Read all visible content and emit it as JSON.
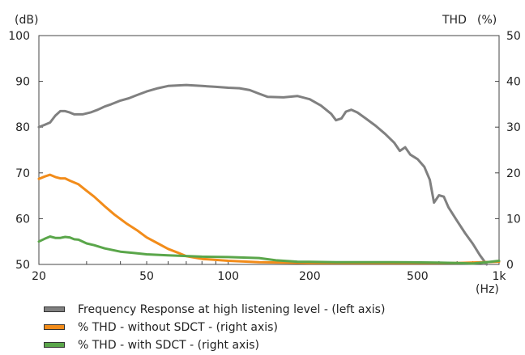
{
  "chart_data": {
    "type": "line",
    "xscale": "log",
    "xlim": [
      20,
      1000
    ],
    "xticks": [
      {
        "value": 20,
        "label": "20"
      },
      {
        "value": 50,
        "label": "50"
      },
      {
        "value": 100,
        "label": "100"
      },
      {
        "value": 200,
        "label": "200"
      },
      {
        "value": 500,
        "label": "500"
      },
      {
        "value": 1000,
        "label": "1k"
      }
    ],
    "xunit": "(Hz)",
    "y_left": {
      "unit": "(dB)",
      "lim": [
        50,
        100
      ],
      "ticks": [
        50,
        60,
        70,
        80,
        90,
        100
      ]
    },
    "y_right": {
      "unit_name": "THD",
      "unit": "(%)",
      "lim": [
        0,
        50
      ],
      "ticks": [
        0,
        10,
        20,
        30,
        40,
        50
      ]
    },
    "series": [
      {
        "name": "Frequency Response at high listening level - (left axis)",
        "axis": "left",
        "color": "#808080",
        "points": [
          [
            20,
            80
          ],
          [
            21,
            80.5
          ],
          [
            22,
            81
          ],
          [
            23,
            82.5
          ],
          [
            24,
            83.5
          ],
          [
            25,
            83.5
          ],
          [
            26,
            83.2
          ],
          [
            27,
            82.8
          ],
          [
            29,
            82.8
          ],
          [
            31,
            83.2
          ],
          [
            33,
            83.8
          ],
          [
            35,
            84.5
          ],
          [
            37,
            85
          ],
          [
            40,
            85.8
          ],
          [
            43,
            86.3
          ],
          [
            46,
            87
          ],
          [
            50,
            87.8
          ],
          [
            55,
            88.5
          ],
          [
            60,
            89
          ],
          [
            70,
            89.2
          ],
          [
            80,
            89
          ],
          [
            90,
            88.8
          ],
          [
            100,
            88.6
          ],
          [
            110,
            88.5
          ],
          [
            120,
            88.1
          ],
          [
            130,
            87.3
          ],
          [
            140,
            86.6
          ],
          [
            160,
            86.5
          ],
          [
            180,
            86.8
          ],
          [
            200,
            86.1
          ],
          [
            220,
            84.7
          ],
          [
            240,
            82.9
          ],
          [
            250,
            81.5
          ],
          [
            262,
            81.9
          ],
          [
            272,
            83.4
          ],
          [
            285,
            83.8
          ],
          [
            300,
            83.2
          ],
          [
            320,
            82
          ],
          [
            350,
            80.3
          ],
          [
            380,
            78.5
          ],
          [
            410,
            76.6
          ],
          [
            430,
            74.8
          ],
          [
            450,
            75.6
          ],
          [
            470,
            74
          ],
          [
            500,
            73
          ],
          [
            530,
            71.3
          ],
          [
            555,
            68.5
          ],
          [
            575,
            63.5
          ],
          [
            600,
            65.1
          ],
          [
            625,
            64.8
          ],
          [
            650,
            62.5
          ],
          [
            700,
            59.5
          ],
          [
            750,
            56.8
          ],
          [
            800,
            54.5
          ],
          [
            850,
            52
          ],
          [
            900,
            50
          ]
        ]
      },
      {
        "name": "% THD - without SDCT - (right axis)",
        "axis": "right",
        "color": "#f28c1a",
        "points": [
          [
            20,
            18.7
          ],
          [
            21,
            19.2
          ],
          [
            22,
            19.6
          ],
          [
            23,
            19.1
          ],
          [
            24,
            18.8
          ],
          [
            25,
            18.8
          ],
          [
            26,
            18.3
          ],
          [
            28,
            17.5
          ],
          [
            30,
            16.1
          ],
          [
            32,
            14.8
          ],
          [
            35,
            12.7
          ],
          [
            38,
            10.9
          ],
          [
            42,
            9
          ],
          [
            46,
            7.5
          ],
          [
            50,
            5.9
          ],
          [
            55,
            4.6
          ],
          [
            60,
            3.4
          ],
          [
            65,
            2.6
          ],
          [
            70,
            1.8
          ],
          [
            80,
            1.2
          ],
          [
            100,
            0.8
          ],
          [
            130,
            0.5
          ],
          [
            200,
            0.3
          ],
          [
            400,
            0.3
          ],
          [
            700,
            0.3
          ],
          [
            1000,
            0.6
          ]
        ]
      },
      {
        "name": "% THD - with SDCT - (right axis)",
        "axis": "right",
        "color": "#5aa64a",
        "points": [
          [
            20,
            5
          ],
          [
            21,
            5.6
          ],
          [
            22,
            6.1
          ],
          [
            23,
            5.8
          ],
          [
            24,
            5.8
          ],
          [
            25,
            6
          ],
          [
            26,
            5.9
          ],
          [
            27,
            5.5
          ],
          [
            28,
            5.4
          ],
          [
            30,
            4.6
          ],
          [
            32,
            4.2
          ],
          [
            35,
            3.5
          ],
          [
            40,
            2.8
          ],
          [
            45,
            2.5
          ],
          [
            50,
            2.2
          ],
          [
            60,
            2
          ],
          [
            80,
            1.7
          ],
          [
            100,
            1.6
          ],
          [
            130,
            1.4
          ],
          [
            150,
            0.9
          ],
          [
            180,
            0.6
          ],
          [
            250,
            0.5
          ],
          [
            400,
            0.5
          ],
          [
            600,
            0.4
          ],
          [
            700,
            0.3
          ],
          [
            800,
            0.2
          ],
          [
            900,
            0.5
          ],
          [
            1000,
            0.8
          ]
        ]
      }
    ]
  }
}
